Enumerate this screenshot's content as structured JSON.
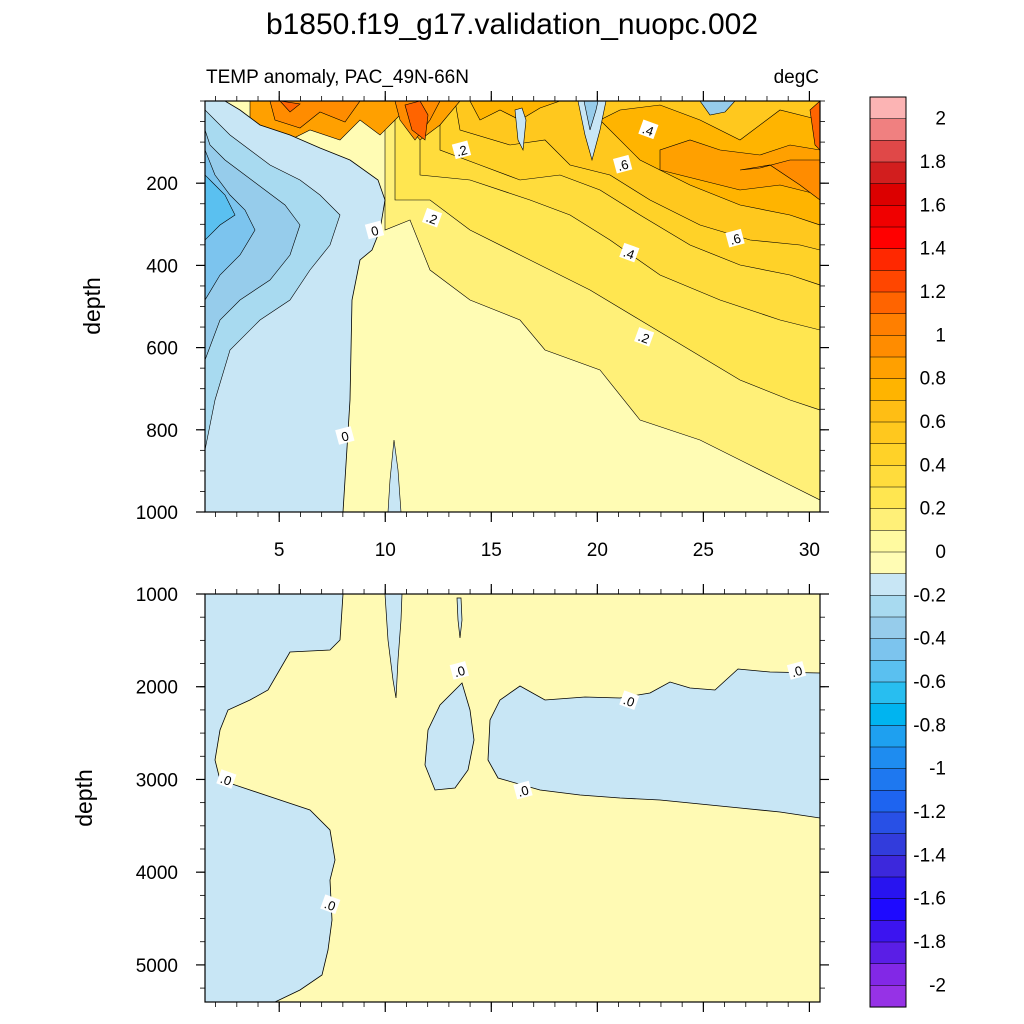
{
  "chart_data": {
    "type": "heatmap",
    "title": "b1850.f19_g17.validation_nuopc.002",
    "subtitle_left": "TEMP anomaly, PAC_49N-66N",
    "subtitle_right": "degC",
    "x_ticks": [
      "5",
      "10",
      "15",
      "20",
      "25",
      "30"
    ],
    "xlim": [
      1.5,
      30.5
    ],
    "panels": [
      {
        "name": "upper",
        "ylabel": "depth",
        "ylim": [
          0,
          1000
        ],
        "y_ticks": [
          "200",
          "400",
          "600",
          "800",
          "1000"
        ],
        "contour_labels": [
          {
            "text": ".2",
            "x": 13.6,
            "y": 120
          },
          {
            "text": ".4",
            "x": 22.4,
            "y": 70
          },
          {
            "text": ".6",
            "x": 21.2,
            "y": 155
          },
          {
            "text": ".2",
            "x": 12.2,
            "y": 285
          },
          {
            "text": "0",
            "x": 9.5,
            "y": 315
          },
          {
            "text": ".4",
            "x": 21.5,
            "y": 370
          },
          {
            "text": ".6",
            "x": 26.5,
            "y": 335
          },
          {
            "text": ".2",
            "x": 22.2,
            "y": 575
          },
          {
            "text": "0",
            "x": 8.1,
            "y": 815
          }
        ]
      },
      {
        "name": "lower",
        "ylabel": "depth",
        "ylim": [
          1000,
          5400
        ],
        "y_ticks": [
          "1000",
          "2000",
          "3000",
          "4000",
          "5000"
        ],
        "contour_labels": [
          {
            "text": ".0",
            "x": 13.5,
            "y": 1830
          },
          {
            "text": ".0",
            "x": 21.5,
            "y": 2150
          },
          {
            "text": ".0",
            "x": 29.4,
            "y": 1830
          },
          {
            "text": ".0",
            "x": 2.5,
            "y": 3000
          },
          {
            "text": ".0",
            "x": 16.5,
            "y": 3120
          },
          {
            "text": ".0",
            "x": 7.4,
            "y": 4350
          }
        ]
      }
    ],
    "colorbar": {
      "labels": [
        "2",
        "1.8",
        "1.6",
        "1.4",
        "1.2",
        "1",
        "0.8",
        "0.6",
        "0.4",
        "0.2",
        "0",
        "-0.2",
        "-0.4",
        "-0.6",
        "-0.8",
        "-1",
        "-1.2",
        "-1.4",
        "-1.6",
        "-1.8",
        "-2"
      ],
      "colors": [
        "#fcb4b4",
        "#f08080",
        "#e04848",
        "#d21e1e",
        "#dc0000",
        "#f00000",
        "#ff0000",
        "#ff2800",
        "#ff4600",
        "#ff6400",
        "#ff7f00",
        "#ff8c00",
        "#ffa000",
        "#ffb400",
        "#ffbe14",
        "#ffc81e",
        "#ffd228",
        "#ffdc3c",
        "#ffe650",
        "#fff078",
        "#fffaa0",
        "#fffcb4",
        "#c8e6f5",
        "#a8daf0",
        "#96cceb",
        "#7cc4ee",
        "#5ac0f0",
        "#28bef0",
        "#00b4f0",
        "#1ea0f0",
        "#1e8cf0",
        "#1e78f0",
        "#1e64f0",
        "#2850e6",
        "#323cdc",
        "#3c28dc",
        "#2814f0",
        "#1e0aff",
        "#3c14f0",
        "#5a1ee6",
        "#8228e6",
        "#9632e6"
      ]
    },
    "colors": {
      "warm_base": "#fffab4",
      "cool_base": "#c8e6f5",
      "contour_line": "#000000"
    }
  }
}
